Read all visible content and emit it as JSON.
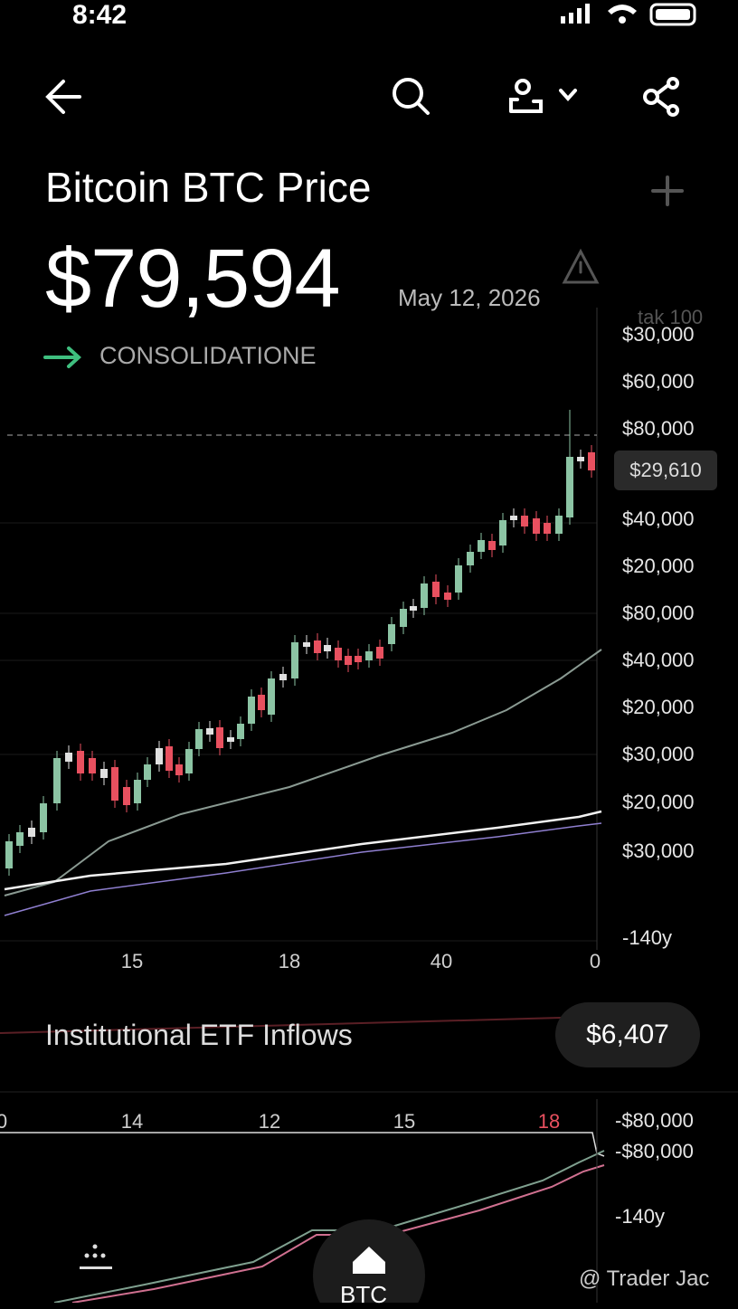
{
  "status_bar": {
    "time": "8:42"
  },
  "header": {
    "title": "Bitcoin BTC Price",
    "price": "$79,594",
    "date": "May 12, 2026",
    "signal": "CONSOLIDATIONE"
  },
  "main_chart": {
    "axis_top": "tak 100",
    "y_labels": [
      "$30,000",
      "$60,000",
      "$80,000",
      "$40,000",
      "$20,000",
      "$80,000",
      "$40,000",
      "$20,000",
      "$30,000",
      "$20,000",
      "$30,000",
      "-140y"
    ],
    "price_tag": "$29,610",
    "x_labels": [
      "15",
      "18",
      "40",
      "0"
    ]
  },
  "etf": {
    "label": "Institutional ETF Inflows",
    "value": "$6,407"
  },
  "lower_chart": {
    "x_labels": [
      "0",
      "14",
      "12",
      "15",
      "18"
    ],
    "y_labels": [
      "-$80,000",
      "-$80,000",
      "-140y"
    ]
  },
  "nav": {
    "tab": "BTC"
  },
  "watermark": "@ Trader Jac"
}
